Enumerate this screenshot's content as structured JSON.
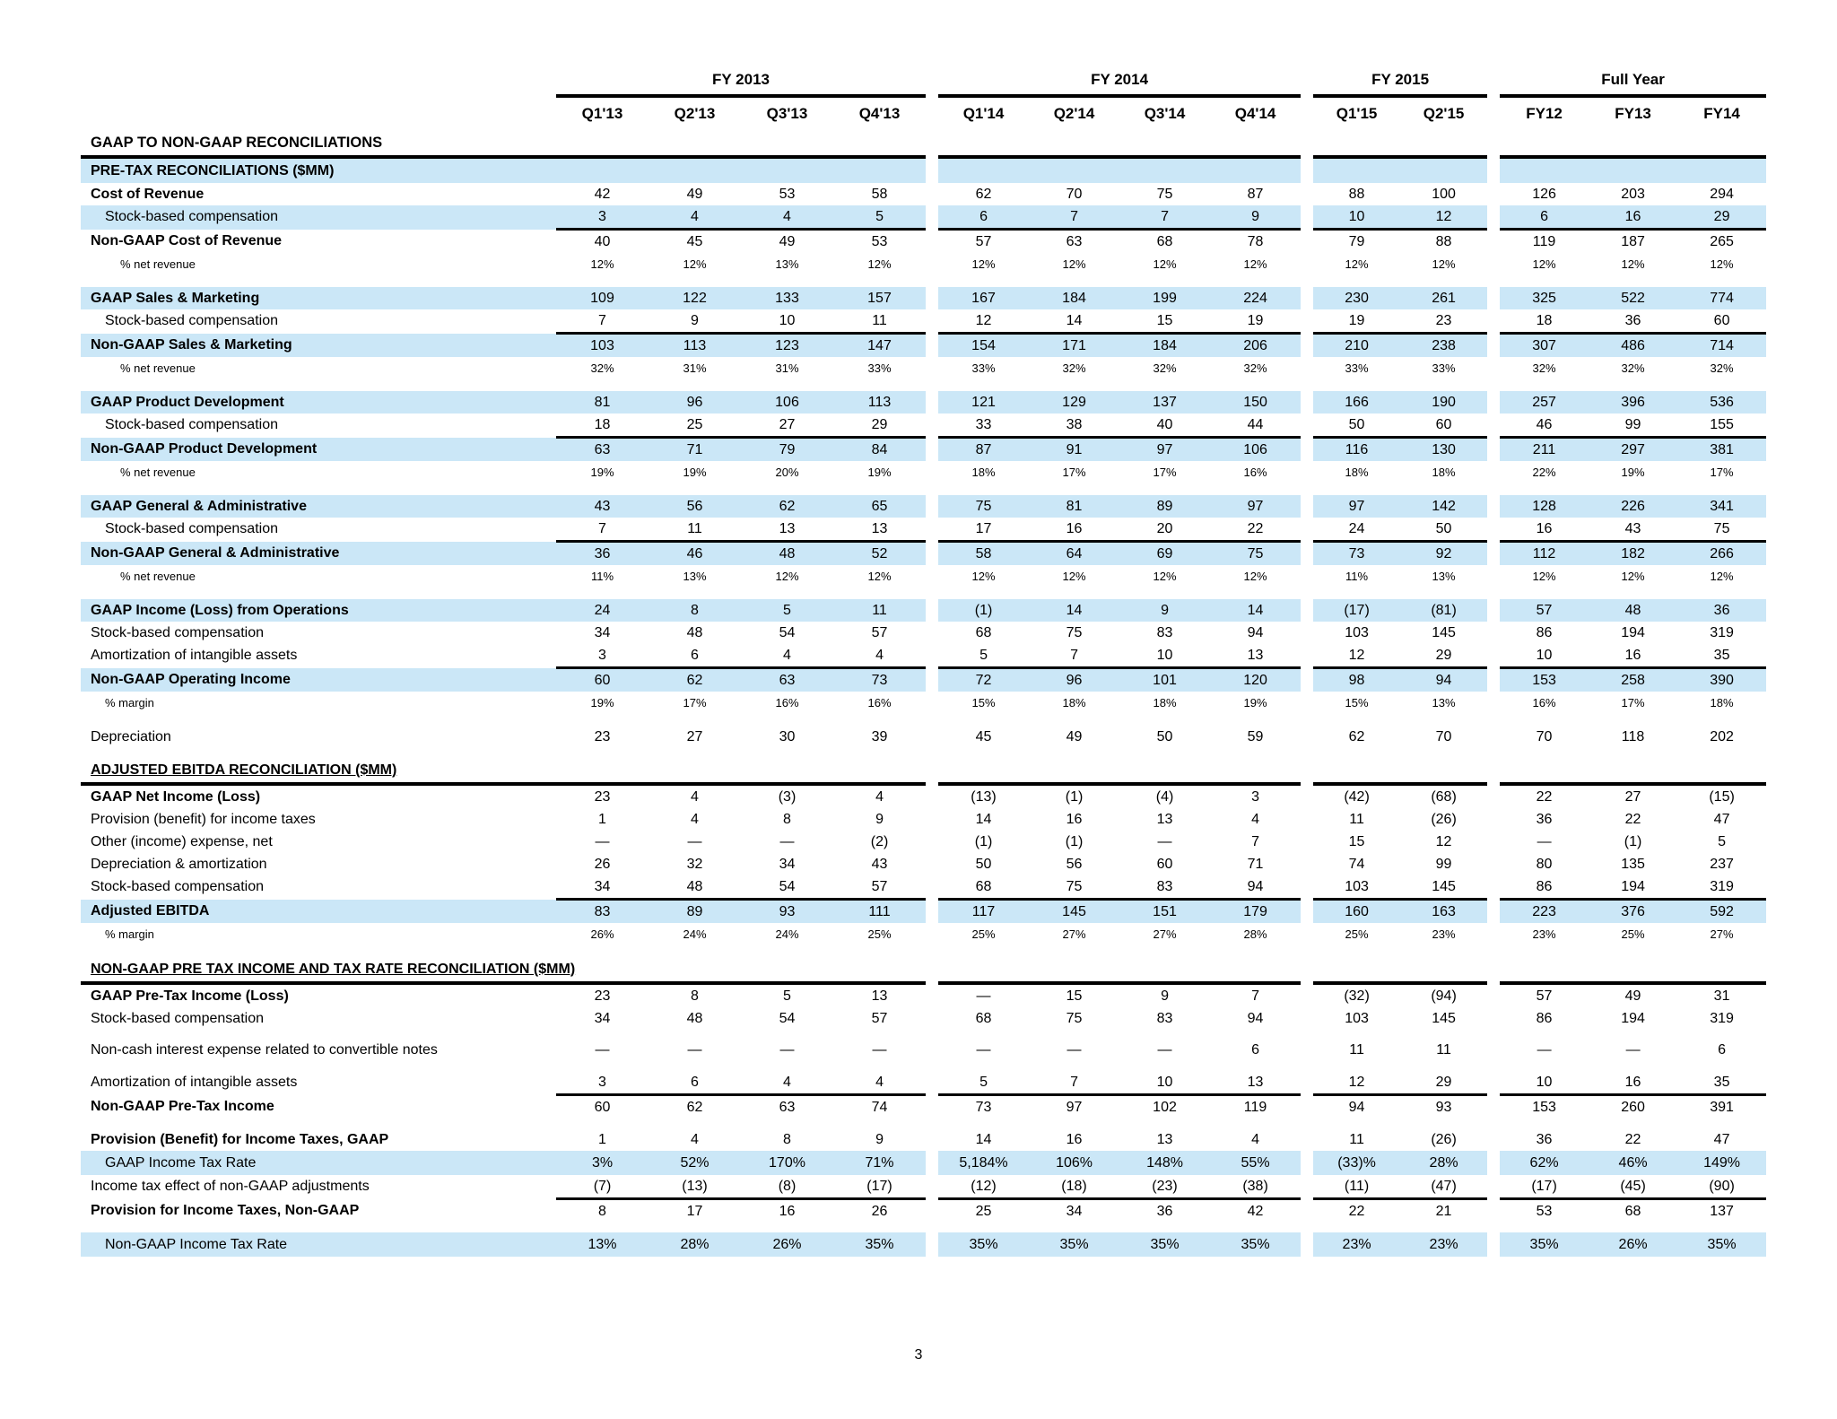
{
  "page": {
    "number": "3"
  },
  "colors": {
    "highlight": "#cbe7f7",
    "text": "#000000",
    "line": "#000000"
  },
  "table": {
    "title": "GAAP TO NON-GAAP RECONCILIATIONS",
    "groups": [
      {
        "label": "FY 2013",
        "cols": [
          "Q1'13",
          "Q2'13",
          "Q3'13",
          "Q4'13"
        ]
      },
      {
        "label": "FY 2014",
        "cols": [
          "Q1'14",
          "Q2'14",
          "Q3'14",
          "Q4'14"
        ]
      },
      {
        "label": "FY 2015",
        "cols": [
          "Q1'15",
          "Q2'15"
        ]
      },
      {
        "label": "Full Year",
        "cols": [
          "FY12",
          "FY13",
          "FY14"
        ]
      }
    ],
    "rows": [
      {
        "label": "PRE-TAX RECONCILIATIONS ($MM)",
        "section": true,
        "bold": true,
        "highlight": true,
        "values": [
          "",
          "",
          "",
          "",
          "",
          "",
          "",
          "",
          "",
          "",
          "",
          "",
          ""
        ]
      },
      {
        "label": "Cost of Revenue",
        "bold": true,
        "values": [
          "42",
          "49",
          "53",
          "58",
          "62",
          "70",
          "75",
          "87",
          "88",
          "100",
          "126",
          "203",
          "294"
        ]
      },
      {
        "label": "Stock-based compensation",
        "indent": 1,
        "highlight": true,
        "sumline": true,
        "values": [
          "3",
          "4",
          "4",
          "5",
          "6",
          "7",
          "7",
          "9",
          "10",
          "12",
          "6",
          "16",
          "29"
        ]
      },
      {
        "label": "Non-GAAP Cost of Revenue",
        "bold": true,
        "values": [
          "40",
          "45",
          "49",
          "53",
          "57",
          "63",
          "68",
          "78",
          "79",
          "88",
          "119",
          "187",
          "265"
        ]
      },
      {
        "label": "% net revenue",
        "indent": 2,
        "small": true,
        "values": [
          "12%",
          "12%",
          "13%",
          "12%",
          "12%",
          "12%",
          "12%",
          "12%",
          "12%",
          "12%",
          "12%",
          "12%",
          "12%"
        ]
      },
      {
        "gap": true
      },
      {
        "label": "GAAP Sales & Marketing",
        "bold": true,
        "highlight": true,
        "values": [
          "109",
          "122",
          "133",
          "157",
          "167",
          "184",
          "199",
          "224",
          "230",
          "261",
          "325",
          "522",
          "774"
        ]
      },
      {
        "label": "Stock-based compensation",
        "indent": 1,
        "sumline": true,
        "values": [
          "7",
          "9",
          "10",
          "11",
          "12",
          "14",
          "15",
          "19",
          "19",
          "23",
          "18",
          "36",
          "60"
        ]
      },
      {
        "label": "Non-GAAP Sales & Marketing",
        "bold": true,
        "highlight": true,
        "values": [
          "103",
          "113",
          "123",
          "147",
          "154",
          "171",
          "184",
          "206",
          "210",
          "238",
          "307",
          "486",
          "714"
        ]
      },
      {
        "label": "% net revenue",
        "indent": 2,
        "small": true,
        "values": [
          "32%",
          "31%",
          "31%",
          "33%",
          "33%",
          "32%",
          "32%",
          "32%",
          "33%",
          "33%",
          "32%",
          "32%",
          "32%"
        ]
      },
      {
        "gap": true
      },
      {
        "label": "GAAP Product Development",
        "bold": true,
        "highlight": true,
        "values": [
          "81",
          "96",
          "106",
          "113",
          "121",
          "129",
          "137",
          "150",
          "166",
          "190",
          "257",
          "396",
          "536"
        ]
      },
      {
        "label": "Stock-based compensation",
        "indent": 1,
        "sumline": true,
        "values": [
          "18",
          "25",
          "27",
          "29",
          "33",
          "38",
          "40",
          "44",
          "50",
          "60",
          "46",
          "99",
          "155"
        ]
      },
      {
        "label": "Non-GAAP Product Development",
        "bold": true,
        "highlight": true,
        "values": [
          "63",
          "71",
          "79",
          "84",
          "87",
          "91",
          "97",
          "106",
          "116",
          "130",
          "211",
          "297",
          "381"
        ]
      },
      {
        "label": "% net revenue",
        "indent": 2,
        "small": true,
        "values": [
          "19%",
          "19%",
          "20%",
          "19%",
          "18%",
          "17%",
          "17%",
          "16%",
          "18%",
          "18%",
          "22%",
          "19%",
          "17%"
        ]
      },
      {
        "gap": true
      },
      {
        "label": "GAAP General & Administrative",
        "bold": true,
        "highlight": true,
        "values": [
          "43",
          "56",
          "62",
          "65",
          "75",
          "81",
          "89",
          "97",
          "97",
          "142",
          "128",
          "226",
          "341"
        ]
      },
      {
        "label": "Stock-based compensation",
        "indent": 1,
        "sumline": true,
        "values": [
          "7",
          "11",
          "13",
          "13",
          "17",
          "16",
          "20",
          "22",
          "24",
          "50",
          "16",
          "43",
          "75"
        ]
      },
      {
        "label": "Non-GAAP General & Administrative",
        "bold": true,
        "highlight": true,
        "values": [
          "36",
          "46",
          "48",
          "52",
          "58",
          "64",
          "69",
          "75",
          "73",
          "92",
          "112",
          "182",
          "266"
        ]
      },
      {
        "label": "% net revenue",
        "indent": 2,
        "small": true,
        "values": [
          "11%",
          "13%",
          "12%",
          "12%",
          "12%",
          "12%",
          "12%",
          "12%",
          "11%",
          "13%",
          "12%",
          "12%",
          "12%"
        ]
      },
      {
        "gap": true
      },
      {
        "label": "GAAP Income (Loss) from Operations",
        "bold": true,
        "highlight": true,
        "values": [
          "24",
          "8",
          "5",
          "11",
          "(1)",
          "14",
          "9",
          "14",
          "(17)",
          "(81)",
          "57",
          "48",
          "36"
        ]
      },
      {
        "label": "Stock-based compensation",
        "values": [
          "34",
          "48",
          "54",
          "57",
          "68",
          "75",
          "83",
          "94",
          "103",
          "145",
          "86",
          "194",
          "319"
        ]
      },
      {
        "label": "Amortization of intangible assets",
        "sumline": true,
        "values": [
          "3",
          "6",
          "4",
          "4",
          "5",
          "7",
          "10",
          "13",
          "12",
          "29",
          "10",
          "16",
          "35"
        ]
      },
      {
        "label": "Non-GAAP Operating Income",
        "bold": true,
        "highlight": true,
        "values": [
          "60",
          "62",
          "63",
          "73",
          "72",
          "96",
          "101",
          "120",
          "98",
          "94",
          "153",
          "258",
          "390"
        ]
      },
      {
        "label": "% margin",
        "indent": 1,
        "small": true,
        "values": [
          "19%",
          "17%",
          "16%",
          "16%",
          "15%",
          "18%",
          "18%",
          "19%",
          "15%",
          "13%",
          "16%",
          "17%",
          "18%"
        ]
      },
      {
        "gap": true
      },
      {
        "label": "Depreciation",
        "values": [
          "23",
          "27",
          "30",
          "39",
          "45",
          "49",
          "50",
          "59",
          "62",
          "70",
          "70",
          "118",
          "202"
        ]
      },
      {
        "gap": true,
        "small_gap": true
      },
      {
        "label": "ADJUSTED EBITDA RECONCILIATION ($MM)",
        "section": true,
        "bold": true,
        "underline": true,
        "rowline": true,
        "values": [
          "",
          "",
          "",
          "",
          "",
          "",
          "",
          "",
          "",
          "",
          "",
          "",
          ""
        ]
      },
      {
        "label": "GAAP Net Income (Loss)",
        "bold": true,
        "values": [
          "23",
          "4",
          "(3)",
          "4",
          "(13)",
          "(1)",
          "(4)",
          "3",
          "(42)",
          "(68)",
          "22",
          "27",
          "(15)"
        ]
      },
      {
        "label": "Provision (benefit) for income taxes",
        "values": [
          "1",
          "4",
          "8",
          "9",
          "14",
          "16",
          "13",
          "4",
          "11",
          "(26)",
          "36",
          "22",
          "47"
        ]
      },
      {
        "label": "Other (income) expense, net",
        "values": [
          "—",
          "—",
          "—",
          "(2)",
          "(1)",
          "(1)",
          "—",
          "7",
          "15",
          "12",
          "—",
          "(1)",
          "5"
        ]
      },
      {
        "label": "Depreciation & amortization",
        "values": [
          "26",
          "32",
          "34",
          "43",
          "50",
          "56",
          "60",
          "71",
          "74",
          "99",
          "80",
          "135",
          "237"
        ]
      },
      {
        "label": "Stock-based compensation",
        "sumline": true,
        "values": [
          "34",
          "48",
          "54",
          "57",
          "68",
          "75",
          "83",
          "94",
          "103",
          "145",
          "86",
          "194",
          "319"
        ]
      },
      {
        "label": "Adjusted EBITDA",
        "bold": true,
        "highlight": true,
        "values": [
          "83",
          "89",
          "93",
          "111",
          "117",
          "145",
          "151",
          "179",
          "160",
          "163",
          "223",
          "376",
          "592"
        ]
      },
      {
        "label": "% margin",
        "indent": 1,
        "small": true,
        "values": [
          "26%",
          "24%",
          "24%",
          "25%",
          "25%",
          "27%",
          "27%",
          "28%",
          "25%",
          "23%",
          "23%",
          "25%",
          "27%"
        ]
      },
      {
        "gap": true
      },
      {
        "label": "NON-GAAP PRE TAX INCOME AND TAX RATE RECONCILIATION ($MM)",
        "section": true,
        "bold": true,
        "underline": true,
        "rowline": true,
        "values": [
          "",
          "",
          "",
          "",
          "",
          "",
          "",
          "",
          "",
          "",
          "",
          "",
          ""
        ]
      },
      {
        "label": "GAAP Pre-Tax Income (Loss)",
        "bold": true,
        "values": [
          "23",
          "8",
          "5",
          "13",
          "—",
          "15",
          "9",
          "7",
          "(32)",
          "(94)",
          "57",
          "49",
          "31"
        ]
      },
      {
        "label": "Stock-based compensation",
        "values": [
          "34",
          "48",
          "54",
          "57",
          "68",
          "75",
          "83",
          "94",
          "103",
          "145",
          "86",
          "194",
          "319"
        ]
      },
      {
        "label": "Non-cash interest expense related to convertible notes",
        "wrap": true,
        "values": [
          "—",
          "—",
          "—",
          "—",
          "—",
          "—",
          "—",
          "6",
          "11",
          "11",
          "—",
          "—",
          "6"
        ]
      },
      {
        "label": "Amortization of intangible assets",
        "sumline": true,
        "values": [
          "3",
          "6",
          "4",
          "4",
          "5",
          "7",
          "10",
          "13",
          "12",
          "29",
          "10",
          "16",
          "35"
        ]
      },
      {
        "label": "Non-GAAP Pre-Tax Income",
        "bold": true,
        "values": [
          "60",
          "62",
          "63",
          "74",
          "73",
          "97",
          "102",
          "119",
          "94",
          "93",
          "153",
          "260",
          "391"
        ]
      },
      {
        "gap": true,
        "small_gap": true
      },
      {
        "label": "Provision (Benefit) for Income Taxes, GAAP",
        "bold": true,
        "values": [
          "1",
          "4",
          "8",
          "9",
          "14",
          "16",
          "13",
          "4",
          "11",
          "(26)",
          "36",
          "22",
          "47"
        ]
      },
      {
        "label": "GAAP Income Tax Rate",
        "indent": 1,
        "highlight": true,
        "section_h": true,
        "values": [
          "3%",
          "52%",
          "170%",
          "71%",
          "5,184%",
          "106%",
          "148%",
          "55%",
          "(33)%",
          "28%",
          "62%",
          "46%",
          "149%"
        ]
      },
      {
        "label": "Income tax effect of non-GAAP adjustments",
        "sumline": true,
        "values": [
          "(7)",
          "(13)",
          "(8)",
          "(17)",
          "(12)",
          "(18)",
          "(23)",
          "(38)",
          "(11)",
          "(47)",
          "(17)",
          "(45)",
          "(90)"
        ]
      },
      {
        "label": "Provision for Income Taxes, Non-GAAP",
        "bold": true,
        "values": [
          "8",
          "17",
          "16",
          "26",
          "25",
          "34",
          "36",
          "42",
          "22",
          "21",
          "53",
          "68",
          "137"
        ]
      },
      {
        "gap": true,
        "small_gap": true
      },
      {
        "label": "Non-GAAP Income Tax Rate",
        "indent": 1,
        "highlight": true,
        "section_h": true,
        "values": [
          "13%",
          "28%",
          "26%",
          "35%",
          "35%",
          "35%",
          "35%",
          "35%",
          "23%",
          "23%",
          "35%",
          "26%",
          "35%"
        ]
      }
    ]
  }
}
